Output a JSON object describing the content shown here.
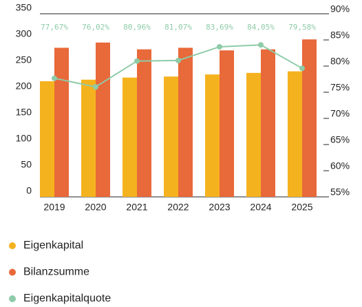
{
  "chart_data": {
    "type": "bar",
    "categories": [
      "2019",
      "2020",
      "2021",
      "2022",
      "2023",
      "2024",
      "2025"
    ],
    "series": [
      {
        "name": "Eigenkapital",
        "color": "#f5b21f",
        "values": [
          221,
          224,
          228,
          230,
          234,
          237,
          240
        ]
      },
      {
        "name": "Bilanzsumme",
        "color": "#e8693a",
        "values": [
          285,
          295,
          282,
          285,
          280,
          282,
          301
        ]
      },
      {
        "name": "Eigenkapitalquote",
        "color": "#8ecba8",
        "type": "line",
        "axis": "y2",
        "values": [
          77.67,
          76.02,
          80.96,
          81.07,
          83.69,
          84.05,
          79.58
        ],
        "value_labels": [
          "77,67%",
          "76,02%",
          "80,96%",
          "81,07%",
          "83,69%",
          "84,05%",
          "79,58%"
        ]
      }
    ],
    "ylim": [
      0,
      350
    ],
    "yticks": [
      0,
      50,
      100,
      150,
      200,
      250,
      300,
      350
    ],
    "y2lim": [
      55,
      90
    ],
    "y2ticks": [
      {
        "value": 55,
        "label": "55%"
      },
      {
        "value": 60,
        "label": "60%"
      },
      {
        "value": 65,
        "label": "65%"
      },
      {
        "value": 70,
        "label": "70%"
      },
      {
        "value": 75,
        "label": "75%"
      },
      {
        "value": 80,
        "label": "80%"
      },
      {
        "value": 85,
        "label": "85%"
      },
      {
        "value": 90,
        "label": "90%"
      }
    ],
    "grid": false
  }
}
